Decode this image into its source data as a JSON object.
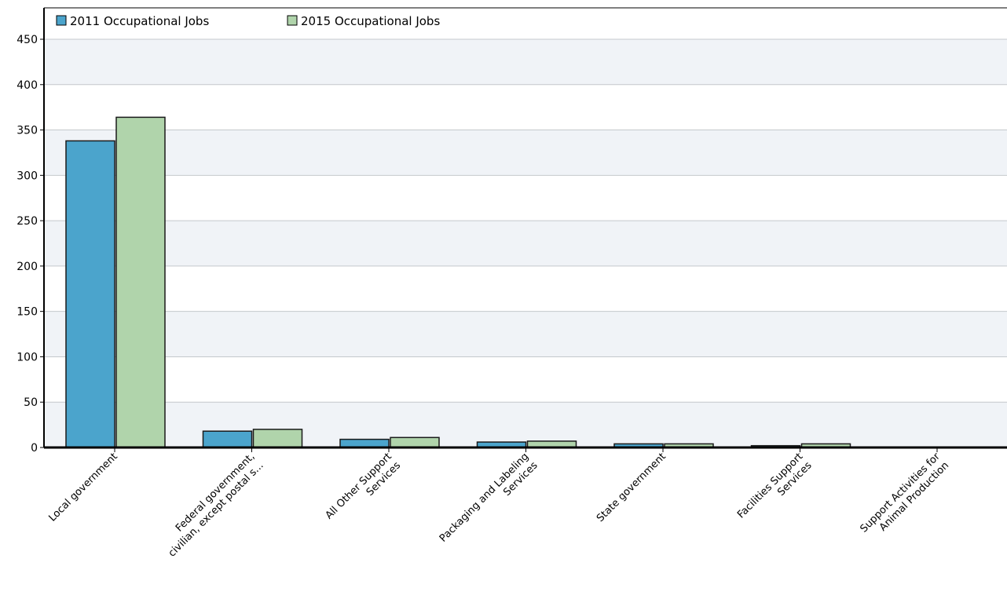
{
  "chart_data": {
    "type": "bar",
    "categories": [
      [
        "Local government"
      ],
      [
        "Federal government,",
        "civilian, except postal s..."
      ],
      [
        "All Other Support",
        "Services"
      ],
      [
        "Packaging and Labeling",
        "Services"
      ],
      [
        "State government"
      ],
      [
        "Facilities Support",
        "Services"
      ],
      [
        "Support Activities for",
        "Animal Production"
      ]
    ],
    "series": [
      {
        "name": "2011 Occupational Jobs",
        "color": "#4ba4cc",
        "values": [
          338,
          18,
          9,
          6,
          4,
          2,
          0
        ]
      },
      {
        "name": "2015 Occupational Jobs",
        "color": "#b0d4ab",
        "values": [
          364,
          20,
          11,
          7,
          4,
          4,
          0
        ]
      }
    ],
    "yticks": [
      "0",
      "50",
      "100",
      "150",
      "200",
      "250",
      "300",
      "350",
      "400",
      "450"
    ],
    "ylim": [
      0,
      450
    ],
    "grid": true,
    "legend_position": "top-left",
    "band_color": "#f0f3f7"
  }
}
